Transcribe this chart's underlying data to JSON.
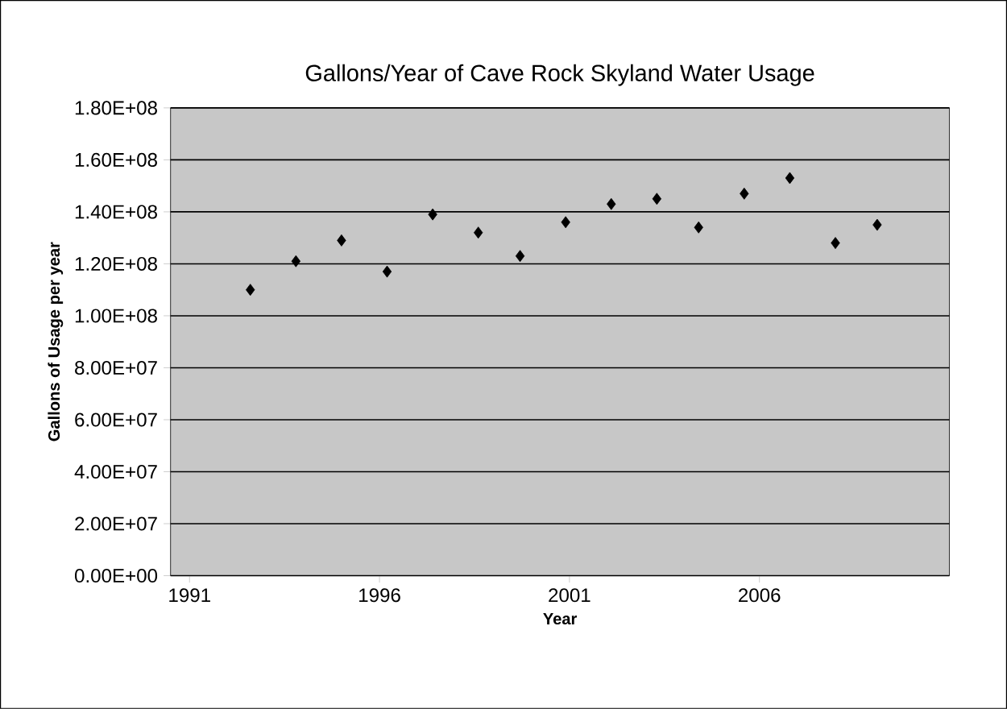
{
  "chart_data": {
    "type": "scatter",
    "title": "Gallons/Year of Cave Rock Skyland Water Usage",
    "xlabel": "Year",
    "ylabel": "Gallons of Usage per year",
    "x": [
      1992.6,
      1993.8,
      1995.0,
      1996.2,
      1997.4,
      1998.6,
      1999.7,
      2000.9,
      2002.1,
      2003.3,
      2004.4,
      2005.6,
      2006.8,
      2008.0,
      2009.1
    ],
    "values": [
      110000000,
      121000000,
      129000000,
      117000000,
      139000000,
      132000000,
      123000000,
      136000000,
      143000000,
      145000000,
      134000000,
      147000000,
      153000000,
      128000000,
      135000000
    ],
    "color": "#000000",
    "marker": "diamond",
    "grid": "y",
    "xlim": [
      1990.5,
      2011
    ],
    "xticks": [
      1991,
      1996,
      2001,
      2006
    ],
    "ylim": [
      0,
      180000000
    ],
    "yticks": [
      {
        "value": 0,
        "label": "0.00E+00"
      },
      {
        "value": 20000000,
        "label": "2.00E+07"
      },
      {
        "value": 40000000,
        "label": "4.00E+07"
      },
      {
        "value": 60000000,
        "label": "6.00E+07"
      },
      {
        "value": 80000000,
        "label": "8.00E+07"
      },
      {
        "value": 100000000,
        "label": "1.00E+08"
      },
      {
        "value": 120000000,
        "label": "1.20E+08"
      },
      {
        "value": 140000000,
        "label": "1.40E+08"
      },
      {
        "value": 160000000,
        "label": "1.60E+08"
      },
      {
        "value": 180000000,
        "label": "1.80E+08"
      }
    ]
  }
}
